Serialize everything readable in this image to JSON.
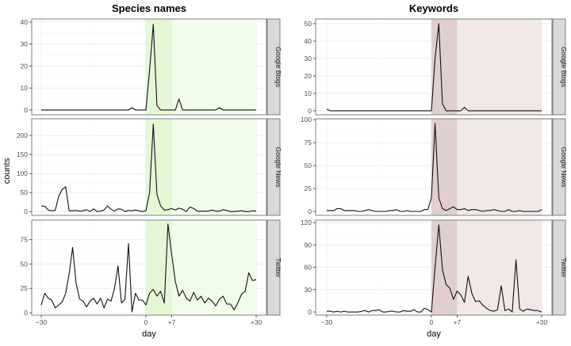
{
  "chart_data": {
    "type": "line",
    "xlabel": "day",
    "ylabel": "counts",
    "x_range": [
      -30,
      30
    ],
    "x_ticks": [
      -30,
      0,
      7,
      30
    ],
    "x_tick_labels": [
      "−30",
      "0",
      "+7",
      "+30"
    ],
    "grid": true,
    "shading": [
      {
        "from": 0,
        "to": 7,
        "level": "dark"
      },
      {
        "from": 7,
        "to": 30,
        "level": "light"
      }
    ],
    "columns": [
      {
        "title": "Species names",
        "colors": {
          "dark": "#e1f7cf",
          "light": "#effbe6"
        },
        "facets": [
          {
            "strip": "Google Blogs",
            "ylim": [
              -2.2,
              41.4
            ],
            "y_ticks": [
              0,
              10,
              20,
              30,
              40
            ],
            "y_tick_labels": [
              "0",
              "10",
              "20",
              "30",
              "40"
            ],
            "values": [
              0,
              0,
              0,
              0,
              0,
              0,
              0,
              0,
              0,
              0,
              0,
              0,
              0,
              0,
              0,
              0,
              0,
              0,
              0,
              0,
              0,
              0,
              0,
              0,
              0,
              0,
              1,
              0,
              0,
              0,
              0,
              18,
              39,
              2,
              0,
              0,
              0,
              0,
              0,
              5,
              0,
              0,
              0,
              0,
              0,
              0,
              0,
              0,
              0,
              0,
              1,
              0,
              0,
              0,
              0,
              0,
              0,
              0,
              0,
              0,
              0
            ]
          },
          {
            "strip": "Google News",
            "ylim": [
              -10,
              244
            ],
            "y_ticks": [
              0,
              50,
              100,
              150,
              200
            ],
            "y_tick_labels": [
              "0",
              "50",
              "100",
              "150",
              "200"
            ],
            "values": [
              15,
              14,
              4,
              2,
              3,
              40,
              58,
              65,
              2,
              2,
              3,
              1,
              2,
              5,
              0,
              7,
              0,
              1,
              4,
              15,
              6,
              1,
              7,
              6,
              0,
              3,
              2,
              4,
              2,
              0,
              2,
              50,
              230,
              45,
              15,
              4,
              5,
              8,
              4,
              9,
              6,
              0,
              12,
              8,
              1,
              1,
              1,
              1,
              4,
              1,
              1,
              5,
              3,
              0,
              0,
              1,
              2,
              0,
              0,
              2,
              1
            ]
          },
          {
            "strip": "Twitter",
            "ylim": [
              -2.4,
              95
            ],
            "y_ticks": [
              0,
              25,
              50,
              75
            ],
            "y_tick_labels": [
              "0",
              "25",
              "50",
              "75"
            ],
            "values": [
              8,
              20,
              15,
              13,
              5,
              8,
              11,
              20,
              40,
              67,
              30,
              14,
              12,
              6,
              12,
              15,
              9,
              15,
              5,
              14,
              12,
              25,
              48,
              10,
              14,
              71,
              1,
              20,
              13,
              13,
              8,
              20,
              24,
              17,
              22,
              10,
              91,
              60,
              32,
              17,
              23,
              15,
              12,
              21,
              13,
              17,
              10,
              15,
              12,
              7,
              14,
              17,
              9,
              9,
              3,
              10,
              19,
              22,
              41,
              33,
              34
            ]
          }
        ]
      },
      {
        "title": "Keywords",
        "colors": {
          "dark": "#dcc7c8",
          "light": "#f1e4e4"
        },
        "facets": [
          {
            "strip": "Google Blogs",
            "ylim": [
              -2.3,
              52.7
            ],
            "y_ticks": [
              0,
              10,
              20,
              30,
              40,
              50
            ],
            "y_tick_labels": [
              "0",
              "10",
              "20",
              "30",
              "40",
              "50"
            ],
            "values": [
              1,
              0,
              0,
              0,
              0,
              0,
              0,
              0,
              0,
              0,
              0,
              0,
              0,
              0,
              0,
              0,
              0,
              0,
              0,
              0,
              0,
              0,
              0,
              0,
              0,
              0,
              0,
              0,
              0,
              0,
              0,
              30,
              50,
              4,
              0,
              0,
              0,
              0,
              0,
              2,
              0,
              0,
              0,
              0,
              0,
              0,
              0,
              0,
              0,
              0,
              0,
              0,
              0,
              0,
              0,
              0,
              0,
              0,
              0,
              0,
              0
            ]
          },
          {
            "strip": "Google News",
            "ylim": [
              -4.3,
              101
            ],
            "y_ticks": [
              0,
              25,
              50,
              75,
              100
            ],
            "y_tick_labels": [
              "0",
              "25",
              "50",
              "75",
              "100"
            ],
            "values": [
              1,
              1,
              1,
              3,
              3,
              1,
              1,
              1,
              1,
              0,
              0,
              1,
              2,
              1,
              0,
              0,
              0,
              0,
              1,
              1,
              2,
              0,
              0,
              1,
              0,
              0,
              0,
              0,
              2,
              2,
              15,
              96,
              15,
              3,
              1,
              3,
              5,
              2,
              2,
              3,
              1,
              2,
              2,
              1,
              0,
              1,
              1,
              2,
              1,
              0,
              0,
              2,
              0,
              0,
              1,
              0,
              0,
              0,
              0,
              0,
              2
            ]
          },
          {
            "strip": "Twitter",
            "ylim": [
              -4.2,
              123.4
            ],
            "y_ticks": [
              0,
              30,
              60,
              90,
              120
            ],
            "y_tick_labels": [
              "0",
              "30",
              "60",
              "90",
              "120"
            ],
            "values": [
              1,
              1,
              0,
              1,
              0,
              1,
              0,
              0,
              0,
              0,
              1,
              2,
              0,
              2,
              2,
              3,
              0,
              0,
              1,
              1,
              0,
              0,
              2,
              1,
              1,
              3,
              0,
              0,
              5,
              3,
              0,
              60,
              117,
              57,
              37,
              32,
              17,
              28,
              23,
              13,
              48,
              25,
              14,
              15,
              9,
              5,
              2,
              1,
              3,
              35,
              2,
              4,
              0,
              70,
              4,
              1,
              4,
              3,
              2,
              2,
              0
            ]
          }
        ]
      }
    ]
  }
}
